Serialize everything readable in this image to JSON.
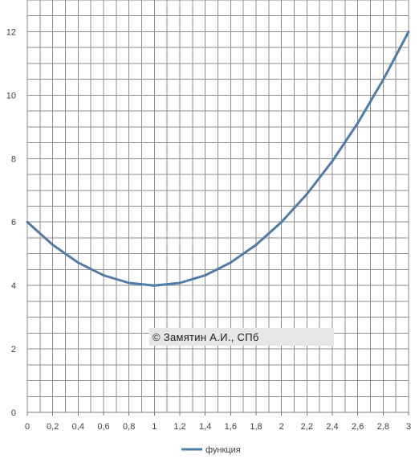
{
  "chart_data": {
    "type": "line",
    "x": [
      0,
      0.2,
      0.4,
      0.6,
      0.8,
      1,
      1.2,
      1.4,
      1.6,
      1.8,
      2,
      2.2,
      2.4,
      2.6,
      2.8,
      3
    ],
    "series": [
      {
        "name": "функция",
        "values": [
          6,
          5.28,
          4.72,
          4.32,
          4.08,
          4,
          4.08,
          4.32,
          4.72,
          5.28,
          6,
          6.88,
          7.92,
          9.12,
          10.48,
          12
        ],
        "color": "#4f7ba8"
      }
    ],
    "x_tick_labels": [
      "0",
      "0,2",
      "0,4",
      "0,6",
      "0,8",
      "1",
      "1,2",
      "1,4",
      "1,6",
      "1,8",
      "2",
      "2,2",
      "2,4",
      "2,6",
      "2,8",
      "3"
    ],
    "y_tick_labels": [
      "0",
      "2",
      "4",
      "6",
      "8",
      "10",
      "12"
    ],
    "xlim": [
      0,
      3
    ],
    "ylim": [
      0,
      13
    ],
    "grid": true,
    "minor_grid_x_step": 0.1,
    "minor_grid_y_step": 0.5,
    "legend_position": "bottom",
    "watermark": "© Замятин А.И., СПб",
    "title": "",
    "xlabel": "",
    "ylabel": ""
  }
}
